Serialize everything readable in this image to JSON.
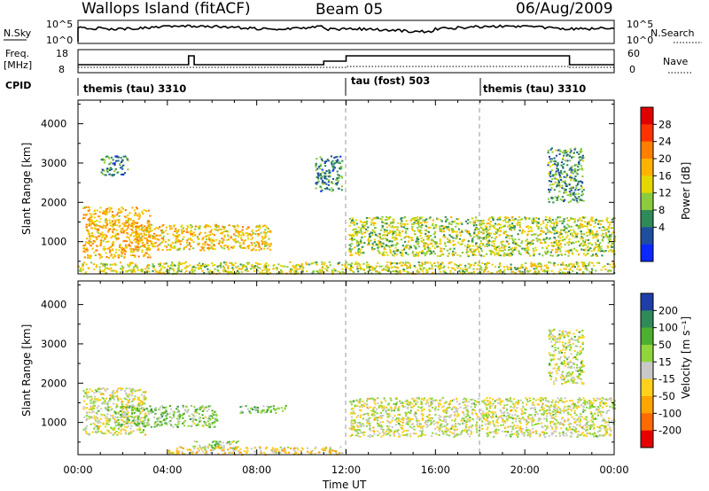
{
  "header": {
    "site": "Wallops Island (fitACF)",
    "beam": "Beam 05",
    "date": "06/Aug/2009"
  },
  "left_labels": {
    "nsky": "N.Sky",
    "freq": "Freq.",
    "freq_unit": "[MHz]",
    "cpid": "CPID"
  },
  "right_labels": {
    "nsearch": "N.Search",
    "nave": "Nave"
  },
  "nsky_ticks": [
    "10^5",
    "10^0"
  ],
  "nsearch_ticks": [
    "10^5",
    "10^0"
  ],
  "freq_ticks": [
    "18",
    "8"
  ],
  "nave_ticks": [
    "60",
    "0"
  ],
  "cpid_segments": [
    {
      "label": "themis (tau) 3310",
      "start_h": 0
    },
    {
      "label": "tau (fost) 503",
      "start_h": 12
    },
    {
      "label": "themis (tau) 3310",
      "start_h": 18
    }
  ],
  "time_ticks": [
    "00:00",
    "04:00",
    "08:00",
    "12:00",
    "16:00",
    "20:00",
    "00:00"
  ],
  "xlabel": "Time UT",
  "range_ticks": [
    "1000",
    "2000",
    "3000",
    "4000"
  ],
  "power_panel": {
    "ylabel": "Slant Range [km]",
    "colorbar_label": "Power [dB]",
    "colorbar_ticks": [
      "28",
      "24",
      "20",
      "16",
      "12",
      "8",
      "4"
    ],
    "colorbar_colors": [
      "#e10000",
      "#ff3300",
      "#ff7f00",
      "#ffb300",
      "#e6d600",
      "#8ccc3c",
      "#2e8b57",
      "#1f4e9f",
      "#0a28ff"
    ]
  },
  "velocity_panel": {
    "ylabel": "Slant Range [km]",
    "colorbar_label": "Velocity [m s⁻¹]",
    "colorbar_ticks": [
      "200",
      "100",
      "50",
      "15",
      "-15",
      "-50",
      "-100",
      "-200"
    ],
    "colorbar_colors": [
      "#1f3fa8",
      "#2e8b57",
      "#4caf30",
      "#8ed63a",
      "#c8c8c8",
      "#ffd11a",
      "#ffa500",
      "#ff6a00",
      "#e60000"
    ]
  },
  "chart_data": {
    "type": "heatmap",
    "title": "Wallops Island (fitACF)",
    "subtitle": "Beam 05",
    "date": "06/Aug/2009",
    "xlabel": "Time UT",
    "xlim": [
      0,
      24
    ],
    "panels": [
      {
        "name": "Power [dB]",
        "ylabel": "Slant Range [km]",
        "ylim": [
          180,
          4600
        ],
        "clim": [
          0,
          30
        ],
        "regions": [
          {
            "t": [
              0.2,
              3.2
            ],
            "r": [
              600,
              1900
            ],
            "v": 18
          },
          {
            "t": [
              2.5,
              8.6
            ],
            "r": [
              800,
              1450
            ],
            "v": 17
          },
          {
            "t": [
              1.0,
              2.2
            ],
            "r": [
              2700,
              3200
            ],
            "v": 8
          },
          {
            "t": [
              10.6,
              11.8
            ],
            "r": [
              2300,
              3200
            ],
            "v": 8
          },
          {
            "t": [
              12.1,
              24.0
            ],
            "r": [
              650,
              1650
            ],
            "v": 13
          },
          {
            "t": [
              21.0,
              22.6
            ],
            "r": [
              2000,
              3400
            ],
            "v": 9
          },
          {
            "t": [
              0.0,
              24.0
            ],
            "r": [
              200,
              500
            ],
            "v": 14
          }
        ]
      },
      {
        "name": "Velocity [m s^-1]",
        "ylabel": "Slant Range [km]",
        "ylim": [
          180,
          4600
        ],
        "clim": [
          -200,
          200
        ],
        "regions": [
          {
            "t": [
              0.2,
              3.0
            ],
            "r": [
              700,
              1900
            ],
            "v": 0
          },
          {
            "t": [
              1.6,
              6.2
            ],
            "r": [
              900,
              1450
            ],
            "v": 45
          },
          {
            "t": [
              7.2,
              9.3
            ],
            "r": [
              1250,
              1450
            ],
            "v": 60
          },
          {
            "t": [
              5.0,
              7.2
            ],
            "r": [
              350,
              550
            ],
            "v": 40
          },
          {
            "t": [
              4.0,
              11.8
            ],
            "r": [
              200,
              400
            ],
            "v": -40
          },
          {
            "t": [
              12.1,
              24.0
            ],
            "r": [
              650,
              1650
            ],
            "v": 0
          },
          {
            "t": [
              21.0,
              22.6
            ],
            "r": [
              2000,
              3400
            ],
            "v": 10
          }
        ]
      }
    ]
  }
}
